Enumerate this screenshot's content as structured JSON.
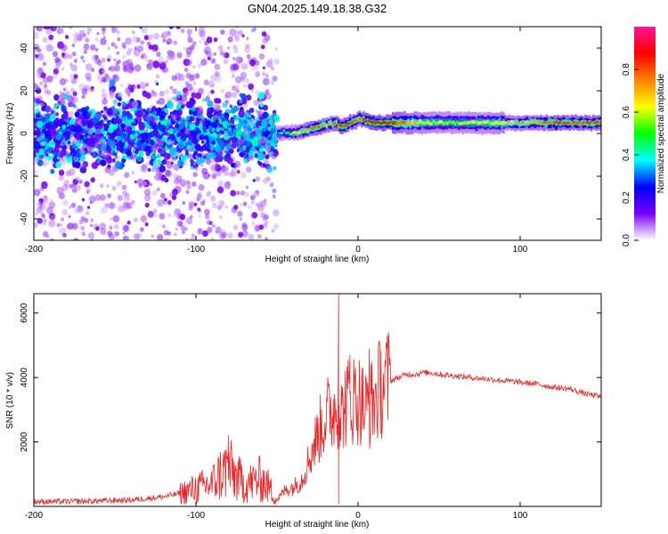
{
  "title": "GN04.2025.149.18.38.G32",
  "chart_data": [
    {
      "type": "heatmap",
      "xlabel": "Height of straight line (km)",
      "ylabel": "Frequency (Hz)",
      "xlim": [
        -200,
        150
      ],
      "ylim": [
        -50,
        50
      ],
      "xticks": [
        -200,
        -100,
        0,
        100
      ],
      "yticks": [
        -40,
        -20,
        0,
        20,
        40
      ],
      "grid": false,
      "colorbar": {
        "label": "Normalized spectral amplitude",
        "range": [
          0,
          1
        ],
        "ticks": [
          "0.0",
          "0.2",
          "0.4",
          "0.6",
          "0.8"
        ],
        "colors": [
          "#ffffff",
          "#7a00ff",
          "#0000ff",
          "#00ffff",
          "#00ff00",
          "#ffff00",
          "#ff8000",
          "#ff0000",
          "#ff1493"
        ]
      },
      "ridge": {
        "x": [
          -50,
          -45,
          -40,
          -35,
          -30,
          -25,
          -20,
          -15,
          -10,
          -5,
          0,
          5,
          10,
          20,
          40,
          60,
          80,
          100,
          120,
          150
        ],
        "freq": [
          0,
          0.5,
          0,
          1,
          2,
          3,
          4,
          5,
          3,
          5,
          7,
          6,
          5,
          5,
          5,
          5,
          5,
          5,
          5,
          5
        ],
        "amplitude": [
          0.3,
          0.45,
          0.6,
          0.7,
          0.75,
          0.8,
          0.7,
          0.75,
          0.85,
          0.8,
          0.75,
          0.85,
          0.9,
          0.85,
          0.6,
          0.55,
          0.6,
          0.7,
          0.8,
          0.8
        ]
      },
      "noise_region": {
        "x_range": [
          -200,
          -50
        ],
        "center_freq": 0,
        "core_halfwidth_hz": 10,
        "peak_amplitude": 0.3
      }
    },
    {
      "type": "line",
      "xlabel": "Height of straight line (km)",
      "ylabel": "SNR (10 * v/v)",
      "xlim": [
        -200,
        150
      ],
      "ylim": [
        0,
        6600
      ],
      "xticks": [
        -200,
        -100,
        0,
        100
      ],
      "yticks": [
        2000,
        4000,
        6000
      ],
      "grid": false,
      "color": "#ee2222",
      "x": [
        -200,
        -180,
        -160,
        -140,
        -120,
        -110,
        -100,
        -90,
        -85,
        -80,
        -75,
        -70,
        -65,
        -60,
        -55,
        -50,
        -45,
        -40,
        -35,
        -30,
        -25,
        -20,
        -15,
        -12,
        -10,
        -8,
        -5,
        0,
        5,
        10,
        15,
        20,
        25,
        30,
        35,
        40,
        45,
        50,
        60,
        70,
        80,
        90,
        100,
        110,
        120,
        130,
        140,
        150
      ],
      "y": [
        150,
        150,
        170,
        200,
        300,
        400,
        550,
        700,
        1000,
        1200,
        900,
        700,
        750,
        850,
        600,
        200,
        500,
        600,
        800,
        1500,
        2200,
        2800,
        3000,
        3200,
        2800,
        3200,
        3300,
        3400,
        3000,
        3300,
        3800,
        3900,
        4000,
        4100,
        4100,
        4150,
        4150,
        4100,
        4050,
        4000,
        3950,
        3900,
        3850,
        3800,
        3700,
        3650,
        3500,
        3400
      ],
      "spikes": [
        {
          "x": -12,
          "y": 6600
        },
        {
          "x": -12,
          "y": 80
        },
        {
          "x": -5,
          "y": 4700
        },
        {
          "x": 7,
          "y": 4900
        },
        {
          "x": -80,
          "y": 2200
        }
      ]
    }
  ]
}
